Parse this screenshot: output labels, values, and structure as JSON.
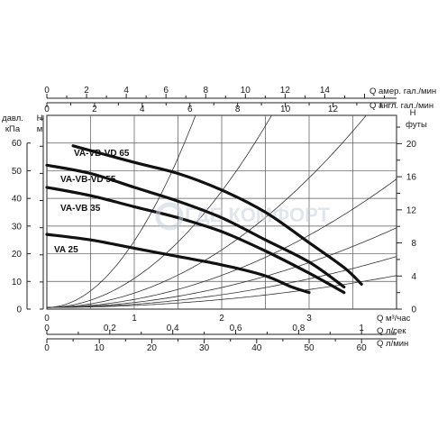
{
  "chart_data": {
    "type": "line",
    "watermark": "ГДЕ КОМФОРТ",
    "axes": {
      "top_us_gpm": {
        "label": "Q  амер. гал./мин",
        "ticks": [
          "0",
          "2",
          "4",
          "6",
          "8",
          "10",
          "12",
          "14"
        ],
        "values": [
          0,
          2,
          4,
          6,
          8,
          10,
          12,
          14
        ]
      },
      "top_uk_gpm": {
        "label": "Q  англ. гал./мин",
        "ticks": [
          "0",
          "2",
          "4",
          "6",
          "8",
          "10",
          "12"
        ],
        "values": [
          0,
          2,
          4,
          6,
          8,
          10,
          12
        ]
      },
      "left_kpa": {
        "label_line1": "давл.",
        "label_line2": "кПа",
        "ticks": [
          "0",
          "10",
          "20",
          "30",
          "40",
          "50",
          "60"
        ],
        "values": [
          0,
          10,
          20,
          30,
          40,
          50,
          60
        ]
      },
      "left_m": {
        "label_line1": "H",
        "label_line2": "м"
      },
      "right_ft": {
        "label_line1": "H",
        "label_line2": "футы",
        "ticks": [
          "0",
          "4",
          "8",
          "12",
          "16",
          "20"
        ],
        "values": [
          0,
          4,
          8,
          12,
          16,
          20
        ]
      },
      "bottom_m3h": {
        "label": "Q  м³/час",
        "ticks": [
          "0",
          "1",
          "2",
          "3"
        ],
        "values": [
          0,
          1,
          2,
          3
        ]
      },
      "bottom_ls": {
        "label": "Q  л/сек",
        "ticks": [
          "0",
          "0,2",
          "0,4",
          "0,6",
          "0,8",
          "1"
        ],
        "values": [
          0,
          0.2,
          0.4,
          0.6,
          0.8,
          1
        ]
      },
      "bottom_lmin": {
        "label": "Q  л/мин",
        "ticks": [
          "0",
          "10",
          "20",
          "30",
          "40",
          "50",
          "60"
        ],
        "values": [
          0,
          10,
          20,
          30,
          40,
          50,
          60
        ]
      }
    },
    "xlim_m3h": [
      0,
      4
    ],
    "ylim_kpa": [
      0,
      70
    ],
    "grid": true,
    "series": [
      {
        "name": "VA-VB-VD 65",
        "x": [
          0.3,
          1.0,
          1.5,
          2.0,
          2.5,
          3.0,
          3.4,
          3.6
        ],
        "y": [
          59,
          53,
          49,
          43,
          35,
          24,
          15,
          9
        ]
      },
      {
        "name": "VA-VB-VD 55",
        "x": [
          0.0,
          0.5,
          1.0,
          1.5,
          2.0,
          2.5,
          3.0,
          3.4
        ],
        "y": [
          52,
          49,
          44,
          39,
          33,
          25,
          17,
          8
        ]
      },
      {
        "name": "VA-VB 35",
        "x": [
          0.0,
          0.5,
          1.0,
          1.5,
          2.0,
          2.5,
          3.0,
          3.4
        ],
        "y": [
          44,
          41,
          37,
          33,
          28,
          21,
          13,
          6
        ]
      },
      {
        "name": "VA 25",
        "x": [
          0.0,
          0.5,
          1.0,
          1.5,
          2.0,
          2.5,
          2.8,
          3.0
        ],
        "y": [
          27,
          25,
          22,
          19,
          16,
          12,
          8,
          6
        ]
      }
    ],
    "system_curves_k": [
      24,
      10.5,
      5.2,
      2.9,
      1.8,
      1.15,
      0.72
    ]
  }
}
